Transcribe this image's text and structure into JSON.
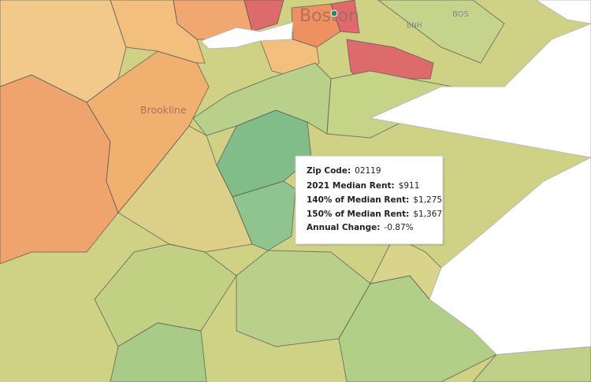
{
  "map_labels": {
    "boston": "Boston",
    "brookline": "Brookline",
    "bos": "BOS",
    "bnh": "BNH"
  },
  "tooltip": {
    "rows": [
      {
        "label": "Zip Code:",
        "value": "02119"
      },
      {
        "label": "2021 Median Rent:",
        "value": "$911"
      },
      {
        "label": "140% of Median Rent:",
        "value": "$1,275"
      },
      {
        "label": "150% of Median Rent:",
        "value": "$1,367"
      },
      {
        "label": "Annual Change:",
        "value": "-0.87%"
      }
    ]
  }
}
